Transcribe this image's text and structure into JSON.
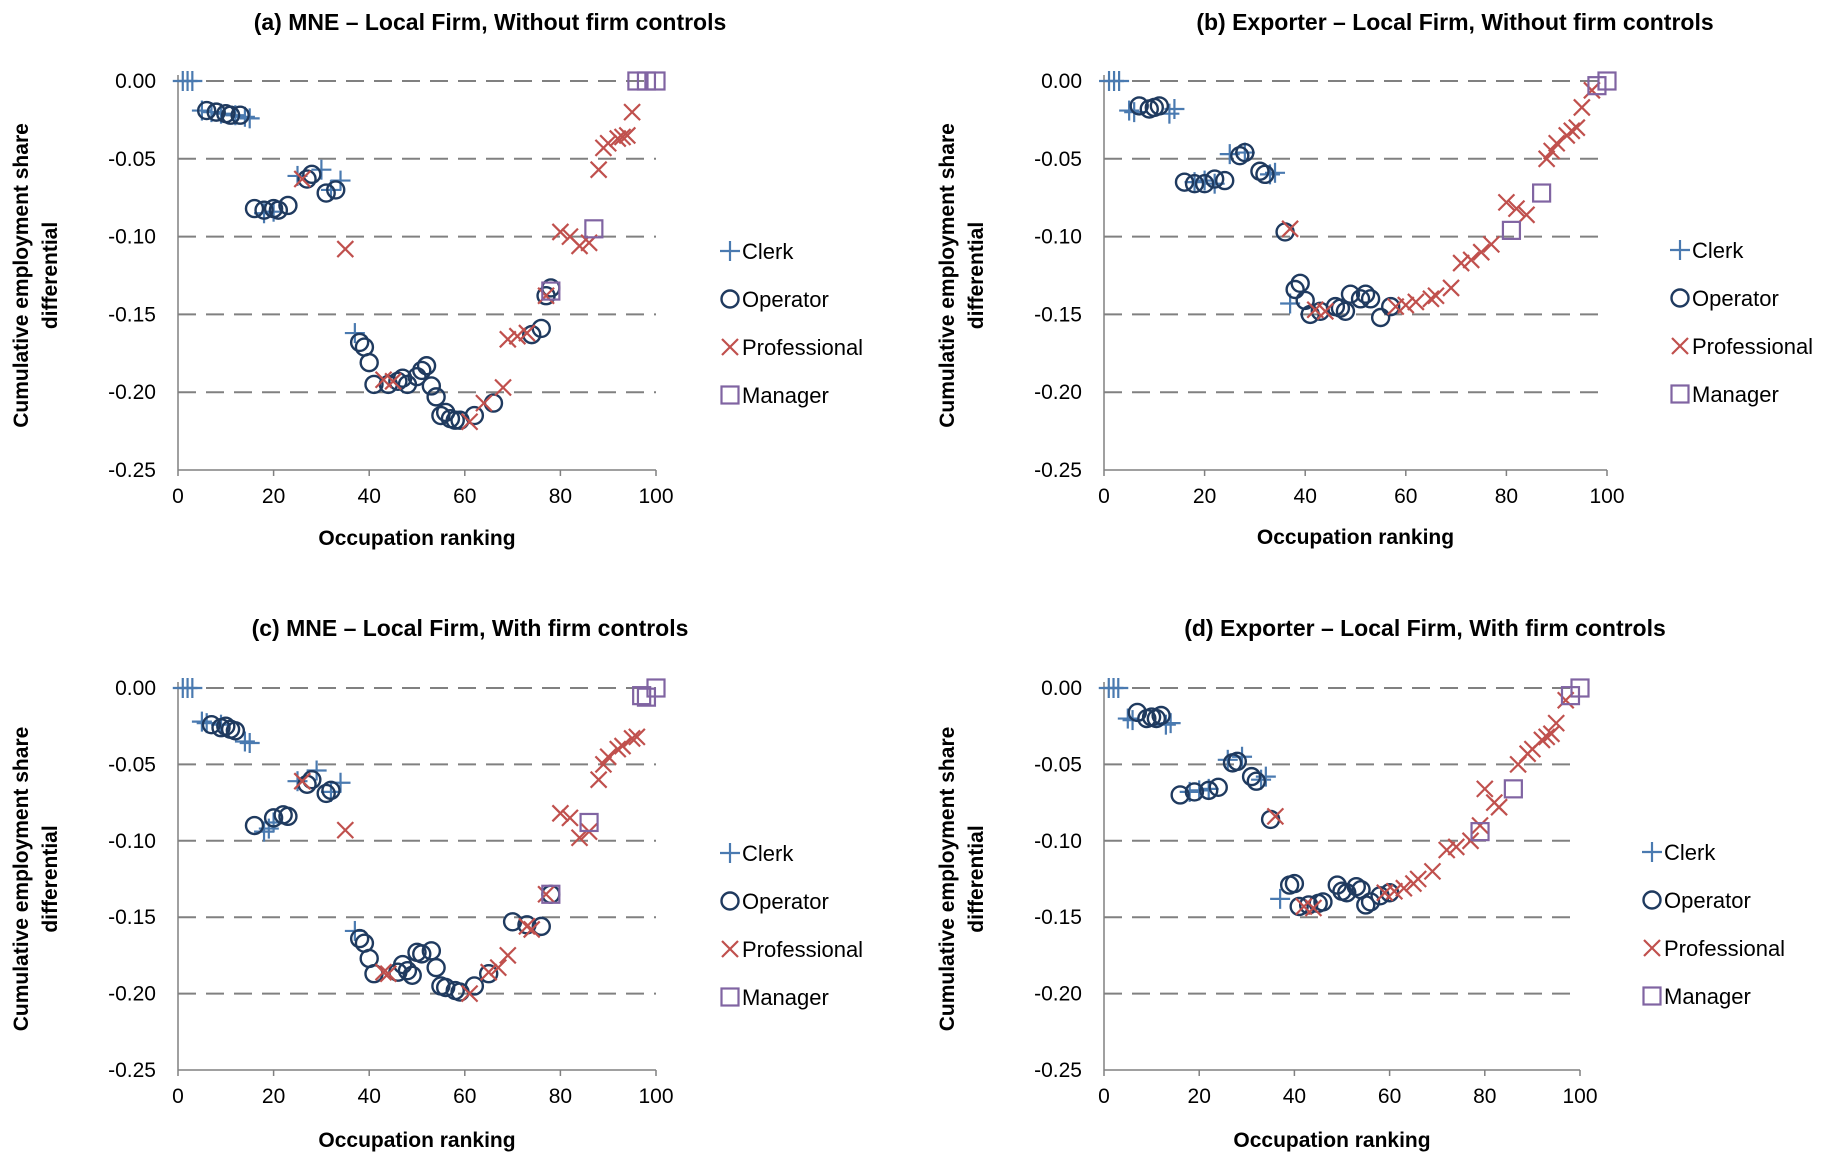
{
  "chart_data": [
    {
      "type": "scatter",
      "title": "(a) MNE – Local Firm, Without firm controls",
      "xlabel": "Occupation ranking",
      "ylabel": "Cumulative employment share differential",
      "xlim": [
        0,
        100
      ],
      "ylim": [
        -0.25,
        0.0
      ],
      "xticks": [
        "0",
        "20",
        "40",
        "60",
        "80",
        "100"
      ],
      "yticks": [
        "0.00",
        "-0.05",
        "-0.10",
        "-0.15",
        "-0.20",
        "-0.25"
      ],
      "grid": "horizontal dashed",
      "legend_position": "right",
      "series": [
        {
          "name": "Clerk",
          "x": [
            1,
            2,
            3,
            5,
            7,
            9,
            12,
            14,
            15,
            18,
            20,
            25,
            30,
            32,
            34,
            37
          ],
          "y": [
            0.0,
            0.0,
            0.0,
            -0.019,
            -0.02,
            -0.021,
            -0.022,
            -0.023,
            -0.024,
            -0.085,
            -0.084,
            -0.061,
            -0.057,
            -0.07,
            -0.064,
            -0.162
          ]
        },
        {
          "name": "Operator",
          "x": [
            6,
            8,
            10,
            11,
            13,
            16,
            18,
            20,
            21,
            23,
            27,
            28,
            31,
            33,
            38,
            39,
            40,
            41,
            44,
            46,
            47,
            48,
            50,
            51,
            52,
            53,
            54,
            55,
            56,
            57,
            58,
            59,
            62,
            66,
            74,
            76,
            77,
            78
          ],
          "y": [
            -0.019,
            -0.02,
            -0.021,
            -0.022,
            -0.022,
            -0.082,
            -0.083,
            -0.082,
            -0.083,
            -0.08,
            -0.063,
            -0.06,
            -0.072,
            -0.07,
            -0.168,
            -0.171,
            -0.181,
            -0.195,
            -0.195,
            -0.193,
            -0.191,
            -0.195,
            -0.19,
            -0.186,
            -0.183,
            -0.196,
            -0.203,
            -0.215,
            -0.213,
            -0.217,
            -0.218,
            -0.218,
            -0.215,
            -0.207,
            -0.163,
            -0.159,
            -0.138,
            -0.133
          ]
        },
        {
          "name": "Professional",
          "x": [
            26,
            35,
            43,
            45,
            61,
            64,
            68,
            69,
            71,
            73,
            77,
            80,
            82,
            84,
            86,
            88,
            89,
            90,
            92,
            93,
            94,
            95
          ],
          "y": [
            -0.063,
            -0.108,
            -0.192,
            -0.193,
            -0.219,
            -0.207,
            -0.197,
            -0.166,
            -0.164,
            -0.162,
            -0.138,
            -0.097,
            -0.1,
            -0.106,
            -0.104,
            -0.057,
            -0.043,
            -0.04,
            -0.037,
            -0.036,
            -0.035,
            -0.02
          ]
        },
        {
          "name": "Manager",
          "x": [
            78,
            87,
            96,
            98,
            100
          ],
          "y": [
            -0.135,
            -0.095,
            0.0,
            0.0,
            0.0
          ]
        }
      ]
    },
    {
      "type": "scatter",
      "title": "(b) Exporter – Local Firm, Without firm controls",
      "xlabel": "Occupation ranking",
      "ylabel": "Cumulative employment share differential",
      "xlim": [
        0,
        100
      ],
      "ylim": [
        -0.25,
        0.0
      ],
      "xticks": [
        "0",
        "20",
        "40",
        "60",
        "80",
        "100"
      ],
      "yticks": [
        "0.00",
        "-0.05",
        "-0.10",
        "-0.15",
        "-0.20",
        "-0.25"
      ],
      "grid": "horizontal dashed",
      "legend_position": "right",
      "series": [
        {
          "name": "Clerk",
          "x": [
            1,
            2,
            3,
            5,
            6,
            13,
            14,
            18,
            20,
            22,
            25,
            28,
            33,
            34,
            37
          ],
          "y": [
            0.0,
            0.0,
            0.0,
            -0.019,
            -0.02,
            -0.021,
            -0.018,
            -0.065,
            -0.064,
            -0.066,
            -0.047,
            -0.046,
            -0.06,
            -0.059,
            -0.143
          ]
        },
        {
          "name": "Operator",
          "x": [
            7,
            9,
            10,
            11,
            16,
            18,
            20,
            22,
            24,
            27,
            28,
            31,
            32,
            36,
            38,
            39,
            40,
            41,
            43,
            46,
            47,
            48,
            49,
            51,
            52,
            53,
            55,
            57
          ],
          "y": [
            -0.016,
            -0.018,
            -0.017,
            -0.016,
            -0.065,
            -0.066,
            -0.066,
            -0.063,
            -0.064,
            -0.048,
            -0.046,
            -0.058,
            -0.06,
            -0.097,
            -0.134,
            -0.13,
            -0.141,
            -0.15,
            -0.148,
            -0.145,
            -0.146,
            -0.148,
            -0.137,
            -0.14,
            -0.137,
            -0.14,
            -0.152,
            -0.145
          ]
        },
        {
          "name": "Professional",
          "x": [
            37,
            42,
            44,
            58,
            60,
            62,
            65,
            66,
            69,
            71,
            73,
            75,
            77,
            80,
            82,
            84,
            88,
            89,
            90,
            92,
            93,
            94,
            95,
            97
          ],
          "y": [
            -0.095,
            -0.147,
            -0.148,
            -0.145,
            -0.144,
            -0.142,
            -0.14,
            -0.138,
            -0.133,
            -0.117,
            -0.115,
            -0.11,
            -0.105,
            -0.078,
            -0.082,
            -0.086,
            -0.05,
            -0.045,
            -0.04,
            -0.035,
            -0.032,
            -0.03,
            -0.017,
            -0.006
          ]
        },
        {
          "name": "Manager",
          "x": [
            81,
            87,
            98,
            100
          ],
          "y": [
            -0.096,
            -0.072,
            -0.003,
            0.0
          ]
        }
      ]
    },
    {
      "type": "scatter",
      "title": "(c) MNE – Local Firm, With firm controls",
      "xlabel": "Occupation ranking",
      "ylabel": "Cumulative employment share differential",
      "xlim": [
        0,
        100
      ],
      "ylim": [
        -0.25,
        0.0
      ],
      "xticks": [
        "0",
        "20",
        "40",
        "60",
        "80",
        "100"
      ],
      "yticks": [
        "0.00",
        "-0.05",
        "-0.10",
        "-0.15",
        "-0.20",
        "-0.25"
      ],
      "grid": "horizontal dashed",
      "legend_position": "right",
      "series": [
        {
          "name": "Clerk",
          "x": [
            1,
            2,
            3,
            5,
            6,
            9,
            14,
            15,
            18,
            19,
            20,
            25,
            29,
            32,
            34,
            37
          ],
          "y": [
            0.0,
            0.0,
            0.0,
            -0.022,
            -0.023,
            -0.024,
            -0.035,
            -0.036,
            -0.094,
            -0.092,
            -0.088,
            -0.061,
            -0.054,
            -0.068,
            -0.062,
            -0.159
          ]
        },
        {
          "name": "Operator",
          "x": [
            7,
            9,
            10,
            11,
            12,
            16,
            20,
            22,
            23,
            27,
            28,
            31,
            32,
            38,
            39,
            40,
            41,
            46,
            47,
            48,
            49,
            50,
            51,
            53,
            54,
            55,
            56,
            58,
            59,
            62,
            65,
            70,
            73,
            76,
            78
          ],
          "y": [
            -0.024,
            -0.026,
            -0.025,
            -0.027,
            -0.028,
            -0.09,
            -0.085,
            -0.083,
            -0.084,
            -0.063,
            -0.06,
            -0.069,
            -0.067,
            -0.164,
            -0.167,
            -0.177,
            -0.187,
            -0.186,
            -0.181,
            -0.185,
            -0.188,
            -0.173,
            -0.174,
            -0.172,
            -0.183,
            -0.195,
            -0.196,
            -0.198,
            -0.199,
            -0.195,
            -0.187,
            -0.153,
            -0.155,
            -0.156,
            -0.135
          ]
        },
        {
          "name": "Professional",
          "x": [
            26,
            35,
            43,
            44,
            61,
            65,
            67,
            69,
            73,
            74,
            77,
            80,
            82,
            84,
            86,
            88,
            89,
            90,
            92,
            93,
            95,
            96
          ],
          "y": [
            -0.061,
            -0.093,
            -0.186,
            -0.187,
            -0.2,
            -0.186,
            -0.183,
            -0.175,
            -0.156,
            -0.158,
            -0.135,
            -0.082,
            -0.085,
            -0.098,
            -0.094,
            -0.06,
            -0.05,
            -0.045,
            -0.04,
            -0.038,
            -0.033,
            -0.032
          ]
        },
        {
          "name": "Manager",
          "x": [
            78,
            86,
            97,
            98,
            100
          ],
          "y": [
            -0.135,
            -0.088,
            -0.005,
            -0.006,
            0.0
          ]
        }
      ]
    },
    {
      "type": "scatter",
      "title": "(d) Exporter – Local Firm, With firm controls",
      "xlabel": "Occupation ranking",
      "ylabel": "Cumulative employment share differential",
      "xlim": [
        0,
        100
      ],
      "ylim": [
        -0.25,
        0.0
      ],
      "xticks": [
        "0",
        "20",
        "40",
        "60",
        "80",
        "100"
      ],
      "yticks": [
        "0.00",
        "-0.05",
        "-0.10",
        "-0.15",
        "-0.20",
        "-0.25"
      ],
      "grid": "horizontal dashed",
      "legend_position": "right",
      "series": [
        {
          "name": "Clerk",
          "x": [
            1,
            2,
            3,
            5,
            6,
            13,
            14,
            18,
            20,
            22,
            26,
            29,
            33,
            34,
            37
          ],
          "y": [
            0.0,
            0.0,
            0.0,
            -0.02,
            -0.021,
            -0.024,
            -0.023,
            -0.068,
            -0.067,
            -0.066,
            -0.047,
            -0.045,
            -0.06,
            -0.058,
            -0.138
          ]
        },
        {
          "name": "Operator",
          "x": [
            7,
            9,
            10,
            11,
            12,
            16,
            19,
            22,
            24,
            27,
            28,
            31,
            32,
            35,
            39,
            40,
            41,
            43,
            45,
            46,
            49,
            50,
            51,
            53,
            54,
            55,
            56,
            58,
            60
          ],
          "y": [
            -0.016,
            -0.02,
            -0.019,
            -0.02,
            -0.018,
            -0.07,
            -0.068,
            -0.067,
            -0.065,
            -0.049,
            -0.048,
            -0.058,
            -0.061,
            -0.086,
            -0.129,
            -0.128,
            -0.143,
            -0.142,
            -0.141,
            -0.14,
            -0.129,
            -0.133,
            -0.134,
            -0.13,
            -0.132,
            -0.142,
            -0.14,
            -0.136,
            -0.134
          ]
        },
        {
          "name": "Professional",
          "x": [
            36,
            42,
            44,
            59,
            61,
            63,
            65,
            66,
            69,
            72,
            74,
            77,
            79,
            80,
            82,
            83,
            87,
            89,
            90,
            92,
            93,
            94,
            95,
            97
          ],
          "y": [
            -0.084,
            -0.143,
            -0.144,
            -0.134,
            -0.133,
            -0.131,
            -0.128,
            -0.125,
            -0.12,
            -0.106,
            -0.104,
            -0.1,
            -0.09,
            -0.066,
            -0.075,
            -0.078,
            -0.05,
            -0.043,
            -0.04,
            -0.034,
            -0.032,
            -0.03,
            -0.023,
            -0.008
          ]
        },
        {
          "name": "Manager",
          "x": [
            79,
            86,
            98,
            100
          ],
          "y": [
            -0.094,
            -0.066,
            -0.005,
            0.0
          ]
        }
      ]
    }
  ],
  "colors": {
    "clerk": "#4a7ab0",
    "operator": "#1f3a5f",
    "professional": "#c0504d",
    "manager": "#8064a2",
    "grid": "#808080",
    "axis": "#808080"
  },
  "marker_shapes": {
    "Clerk": "plus",
    "Operator": "circle",
    "Professional": "cross",
    "Manager": "square"
  }
}
